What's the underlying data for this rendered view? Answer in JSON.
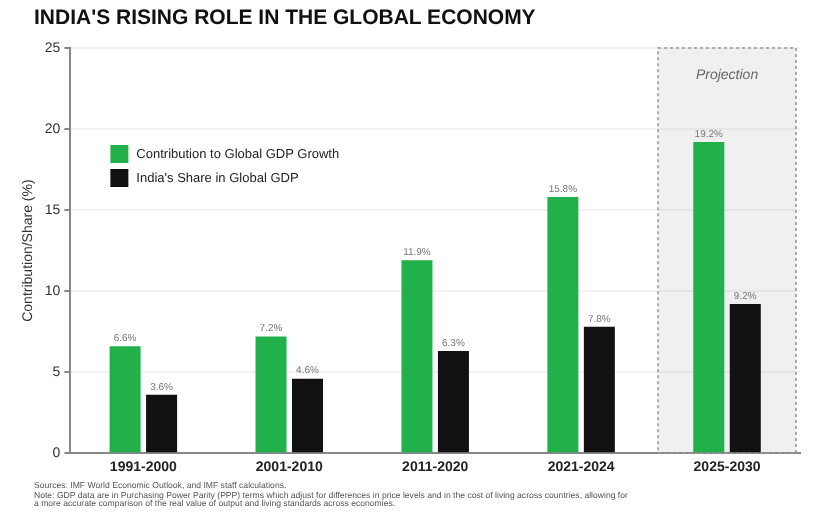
{
  "chart_data": {
    "type": "bar",
    "title": "INDIA'S RISING ROLE IN THE GLOBAL ECONOMY",
    "ylabel": "Contribution/Share (%)",
    "categories": [
      "1991-2000",
      "2001-2010",
      "2011-2020",
      "2021-2024",
      "2025-2030"
    ],
    "series": [
      {
        "name": "Contribution to Global GDP Growth",
        "color": "#22b04b",
        "values": [
          6.6,
          7.2,
          11.9,
          15.8,
          19.2
        ],
        "value_labels": [
          "6.6%",
          "7.2%",
          "11.9%",
          "15.8%",
          "19.2%"
        ]
      },
      {
        "name": "India's Share in Global GDP",
        "color": "#111111",
        "values": [
          3.6,
          4.6,
          6.3,
          7.8,
          9.2
        ],
        "value_labels": [
          "3.6%",
          "4.6%",
          "6.3%",
          "7.8%",
          "9.2%"
        ]
      }
    ],
    "ylim": [
      0,
      25
    ],
    "yticks": [
      0,
      5,
      10,
      15,
      20,
      25
    ],
    "grid": "y",
    "legend": "top left",
    "bands": [
      {
        "axis": "x",
        "from": "2025-2030",
        "to": "2025-2030",
        "label": "Projection",
        "color": "#999999"
      }
    ],
    "annotations": [
      "Sources: IMF World Economic Outlook, and IMF staff calculations.",
      "Note: GDP data are in Purchasing Power Parity (PPP) terms which adjust for differences in price levels and in the cost of living across countries, allowing for a more accurate comparison of the real value of output and living standards across economies."
    ]
  }
}
